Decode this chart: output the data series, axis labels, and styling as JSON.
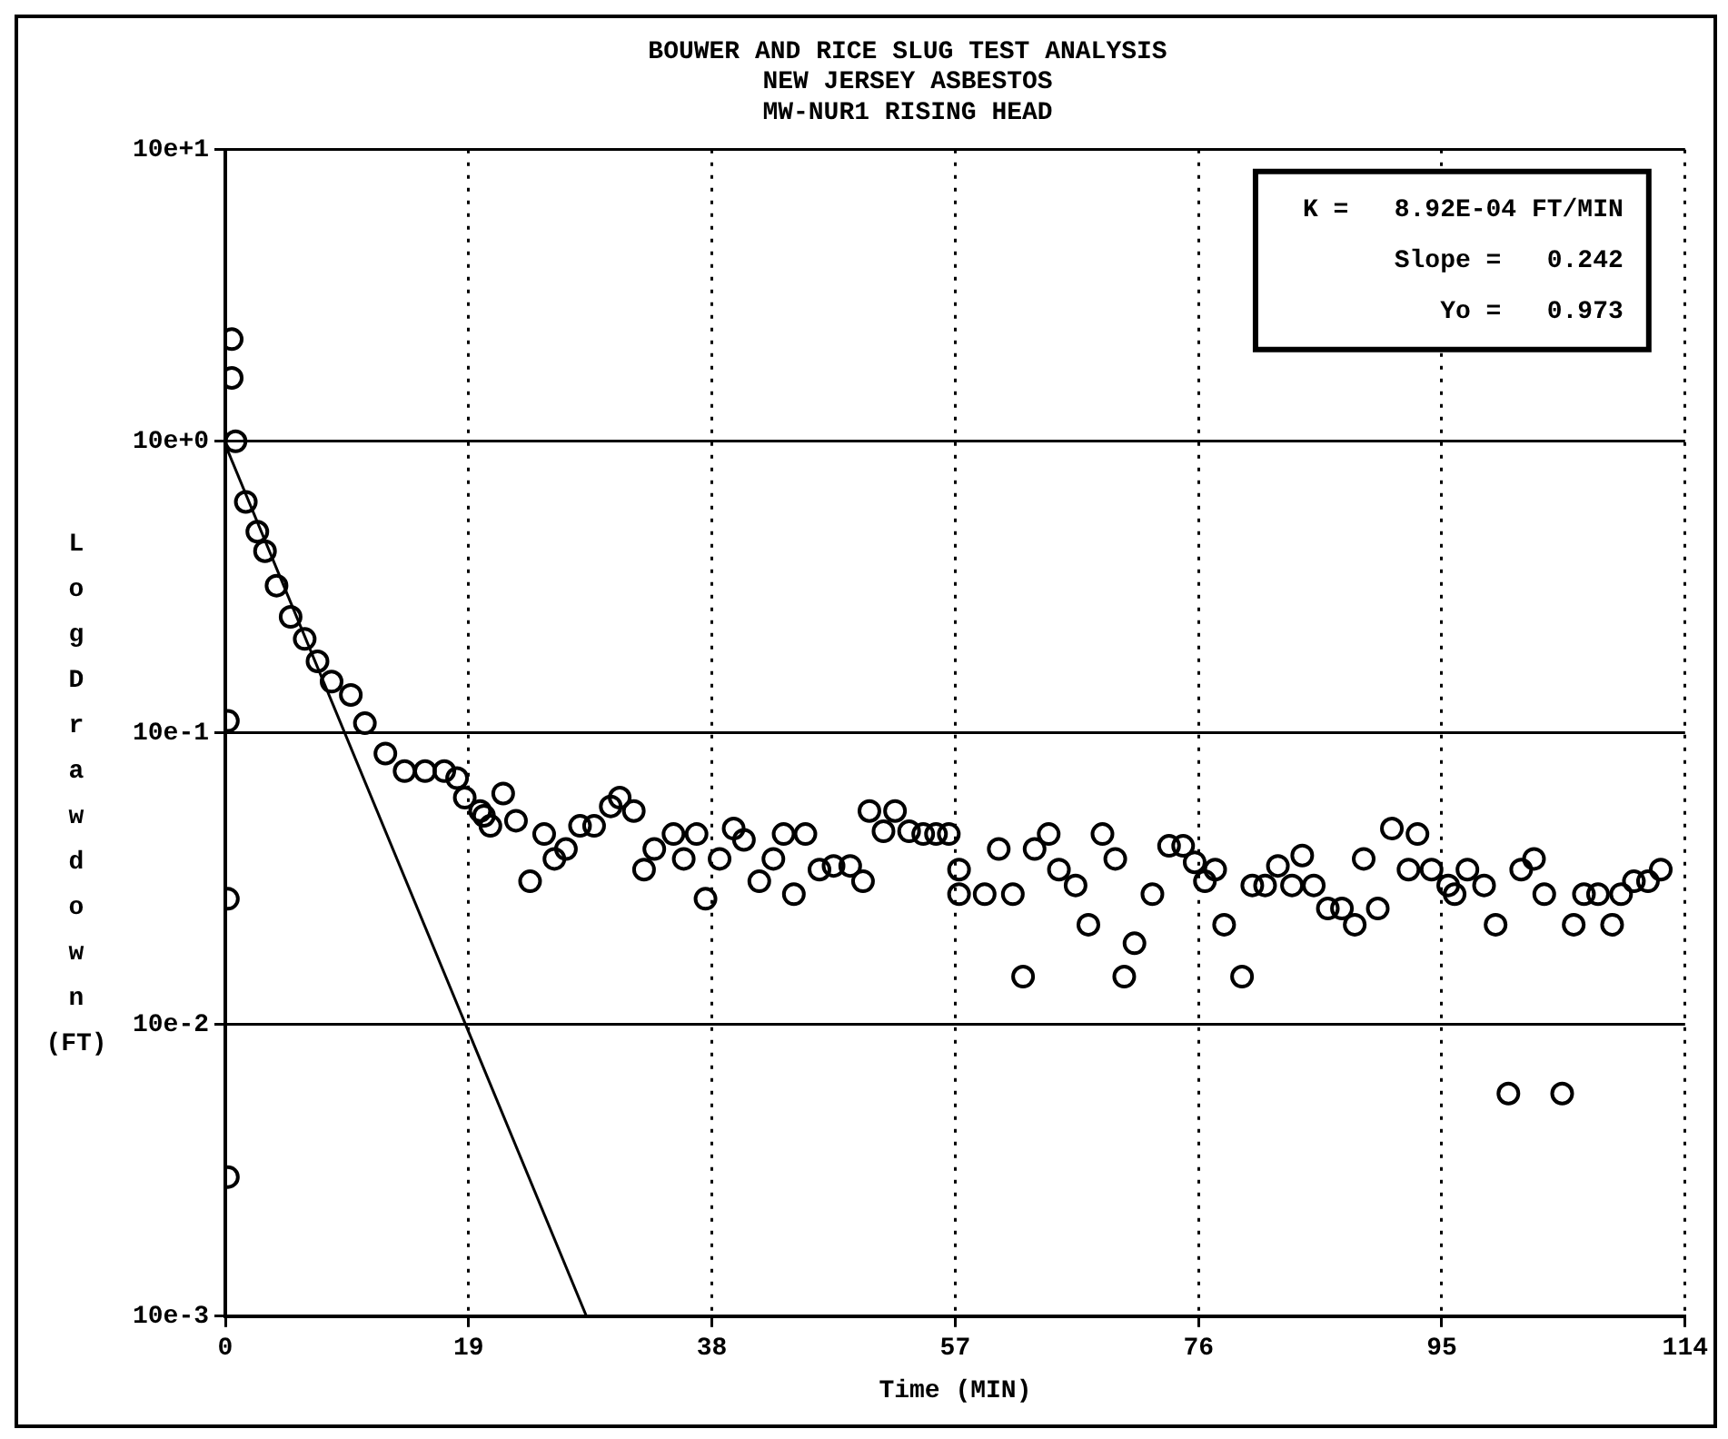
{
  "chart_data": {
    "type": "scatter",
    "title": "BOUWER AND RICE SLUG TEST ANALYSIS\nNEW JERSEY ASBESTOS\nMW-NUR1 RISING HEAD",
    "xlabel": "Time (MIN)",
    "ylabel": "Log Drawdown (FT)",
    "annotations": [
      "K =   8.92E-04 FT/MIN",
      "Slope =   0.242",
      "Yo =   0.973"
    ],
    "series": [
      {
        "color": "#000000",
        "x": [
          0.2,
          0.2,
          0.2,
          0.5,
          0.5,
          0.8,
          1.6,
          2.5,
          3.1,
          4.0,
          5.1,
          6.2,
          7.2,
          8.3,
          9.8,
          10.9,
          12.5,
          14.0,
          15.6,
          17.1,
          18.1,
          18.7,
          19.9,
          20.2,
          20.7,
          21.7,
          22.7,
          23.8,
          24.9,
          25.7,
          26.6,
          27.7,
          28.8,
          30.1,
          30.8,
          31.9,
          32.7,
          33.5,
          35.0,
          35.8,
          36.8,
          37.5,
          38.6,
          39.7,
          40.5,
          41.7,
          42.8,
          43.6,
          44.4,
          45.3,
          46.4,
          47.5,
          48.8,
          49.8,
          50.3,
          51.4,
          52.3,
          53.4,
          54.5,
          55.5,
          56.5,
          57.3,
          57.3,
          59.3,
          60.4,
          61.5,
          62.3,
          63.2,
          64.3,
          65.1,
          66.4,
          67.4,
          68.5,
          69.5,
          70.2,
          71.0,
          72.4,
          73.7,
          74.8,
          75.7,
          76.5,
          77.3,
          78.0,
          79.4,
          80.2,
          81.2,
          82.2,
          83.3,
          84.1,
          85.0,
          86.1,
          87.2,
          88.2,
          88.9,
          90.0,
          91.1,
          92.4,
          93.1,
          94.2,
          95.5,
          96.0,
          97.0,
          98.3,
          99.2,
          100.2,
          101.2,
          102.2,
          103.0,
          104.4,
          105.3,
          106.1,
          107.2,
          108.3,
          109.0,
          110.0,
          111.1,
          112.1
        ],
        "values": [
          1.1,
          0.27,
          0.03,
          22.4,
          16.5,
          10,
          6.2,
          4.9,
          4.2,
          3.2,
          2.5,
          2.1,
          1.76,
          1.5,
          1.35,
          1.08,
          0.85,
          0.74,
          0.74,
          0.74,
          0.7,
          0.6,
          0.54,
          0.52,
          0.48,
          0.62,
          0.5,
          0.31,
          0.45,
          0.37,
          0.4,
          0.48,
          0.48,
          0.56,
          0.6,
          0.54,
          0.34,
          0.4,
          0.45,
          0.37,
          0.45,
          0.27,
          0.37,
          0.47,
          0.43,
          0.31,
          0.37,
          0.45,
          0.28,
          0.45,
          0.34,
          0.35,
          0.35,
          0.31,
          0.54,
          0.46,
          0.54,
          0.46,
          0.45,
          0.45,
          0.45,
          0.34,
          0.28,
          0.28,
          0.4,
          0.28,
          0.146,
          0.4,
          0.45,
          0.34,
          0.3,
          0.22,
          0.45,
          0.37,
          0.146,
          0.19,
          0.28,
          0.41,
          0.41,
          0.36,
          0.31,
          0.34,
          0.22,
          0.146,
          0.3,
          0.3,
          0.35,
          0.3,
          0.38,
          0.3,
          0.25,
          0.25,
          0.22,
          0.37,
          0.25,
          0.47,
          0.34,
          0.45,
          0.34,
          0.3,
          0.28,
          0.34,
          0.3,
          0.22,
          0.058,
          0.34,
          0.37,
          0.28,
          0.058,
          0.22,
          0.28,
          0.28,
          0.22,
          0.28,
          0.31,
          0.31,
          0.34
        ]
      },
      {
        "type": "line",
        "marker": "none",
        "color": "#000000",
        "x": [
          0,
          28.2
        ],
        "values": [
          9.73,
          0.01
        ]
      }
    ],
    "xlim": [
      0,
      114
    ],
    "xticks": [
      0,
      19,
      38,
      57,
      76,
      95,
      114
    ],
    "ylim": [
      0.01,
      100
    ],
    "yticks": [
      {
        "value": 0.01,
        "label": "10e-3"
      },
      {
        "value": 0.1,
        "label": "10e-2"
      },
      {
        "value": 1,
        "label": "10e-1"
      },
      {
        "value": 10,
        "label": "10e+0"
      },
      {
        "value": 100,
        "label": "10e+1"
      }
    ],
    "log": "y",
    "grid": true,
    "marker": "circle",
    "legend": false
  }
}
